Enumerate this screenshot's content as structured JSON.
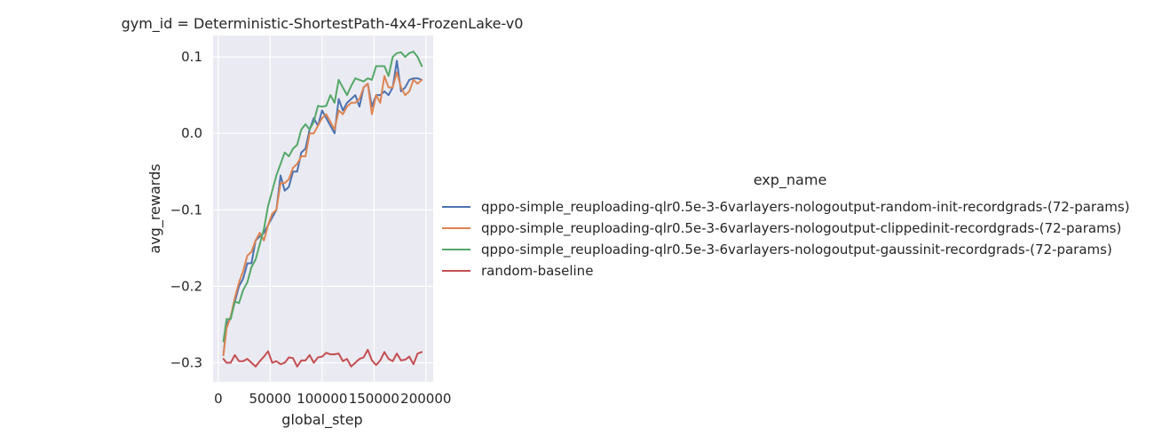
{
  "chart_data": {
    "type": "line",
    "title": "gym_id = Deterministic-ShortestPath-4x4-FrozenLake-v0",
    "xlabel": "global_step",
    "ylabel": "avg_rewards",
    "xlim": [
      -5000,
      207000
    ],
    "ylim": [
      -0.325,
      0.128
    ],
    "xticks": [
      0,
      50000,
      100000,
      150000,
      200000
    ],
    "xtick_labels": [
      "0",
      "50000",
      "100000",
      "150000",
      "200000"
    ],
    "yticks": [
      -0.3,
      -0.2,
      -0.1,
      0.0,
      0.1
    ],
    "ytick_labels": [
      "−0.3",
      "−0.2",
      "−0.1",
      "0.0",
      "0.1"
    ],
    "grid": true,
    "legend_title": "exp_name",
    "legend_position": "right",
    "x": [
      5000,
      8000,
      12000,
      16000,
      20000,
      24000,
      28000,
      32000,
      36000,
      40000,
      44000,
      48000,
      52000,
      56000,
      60000,
      64000,
      68000,
      72000,
      76000,
      80000,
      84000,
      88000,
      92000,
      96000,
      100000,
      104000,
      108000,
      112000,
      116000,
      120000,
      124000,
      128000,
      132000,
      136000,
      140000,
      144000,
      148000,
      152000,
      156000,
      160000,
      164000,
      168000,
      172000,
      176000,
      180000,
      184000,
      188000,
      192000,
      196000
    ],
    "series": [
      {
        "name": "qppo-simple_reuploading-qlr0.5e-3-6varlayers-nologoutput-random-init-recordgrads-(72-params)",
        "color": "#4c72b0",
        "values": [
          -0.29,
          -0.25,
          -0.24,
          -0.22,
          -0.2,
          -0.19,
          -0.17,
          -0.17,
          -0.14,
          -0.135,
          -0.13,
          -0.12,
          -0.11,
          -0.1,
          -0.055,
          -0.075,
          -0.07,
          -0.05,
          -0.05,
          -0.025,
          -0.02,
          0.005,
          0.02,
          0.01,
          0.03,
          0.02,
          0.01,
          0.0,
          0.045,
          0.03,
          0.04,
          0.045,
          0.05,
          0.035,
          0.06,
          0.065,
          0.035,
          0.05,
          0.05,
          0.055,
          0.05,
          0.06,
          0.095,
          0.055,
          0.06,
          0.07,
          0.072,
          0.072,
          0.07
        ]
      },
      {
        "name": "qppo-simple_reuploading-qlr0.5e-3-6varlayers-nologoutput-clippedinit-recordgrads-(72-params)",
        "color": "#dd8452",
        "values": [
          -0.29,
          -0.255,
          -0.24,
          -0.215,
          -0.195,
          -0.18,
          -0.16,
          -0.155,
          -0.14,
          -0.13,
          -0.14,
          -0.12,
          -0.105,
          -0.1,
          -0.065,
          -0.065,
          -0.06,
          -0.045,
          -0.04,
          -0.03,
          -0.03,
          0.0,
          0.0,
          0.01,
          0.02,
          0.025,
          0.015,
          0.005,
          0.03,
          0.025,
          0.035,
          0.04,
          0.04,
          0.045,
          0.06,
          0.065,
          0.025,
          0.05,
          0.04,
          0.075,
          0.06,
          0.06,
          0.08,
          0.06,
          0.05,
          0.055,
          0.07,
          0.065,
          0.07
        ]
      },
      {
        "name": "qppo-simple_reuploading-qlr0.5e-3-6varlayers-nologoutput-gaussinit-recordgrads-(72-params)",
        "color": "#55a868",
        "values": [
          -0.272,
          -0.243,
          -0.243,
          -0.22,
          -0.222,
          -0.205,
          -0.195,
          -0.175,
          -0.165,
          -0.145,
          -0.125,
          -0.095,
          -0.075,
          -0.055,
          -0.04,
          -0.025,
          -0.03,
          -0.02,
          -0.015,
          0.005,
          0.012,
          0.005,
          0.015,
          0.036,
          0.035,
          0.036,
          0.05,
          0.04,
          0.07,
          0.06,
          0.05,
          0.062,
          0.072,
          0.07,
          0.068,
          0.072,
          0.07,
          0.088,
          0.088,
          0.088,
          0.075,
          0.1,
          0.105,
          0.106,
          0.1,
          0.105,
          0.107,
          0.1,
          0.088
        ]
      },
      {
        "name": "random-baseline",
        "color": "#c44e52",
        "values": [
          -0.295,
          -0.3,
          -0.3,
          -0.29,
          -0.298,
          -0.298,
          -0.295,
          -0.3,
          -0.305,
          -0.298,
          -0.292,
          -0.285,
          -0.3,
          -0.298,
          -0.302,
          -0.3,
          -0.293,
          -0.294,
          -0.305,
          -0.297,
          -0.297,
          -0.29,
          -0.3,
          -0.293,
          -0.292,
          -0.287,
          -0.289,
          -0.289,
          -0.288,
          -0.298,
          -0.295,
          -0.305,
          -0.3,
          -0.295,
          -0.293,
          -0.283,
          -0.297,
          -0.303,
          -0.297,
          -0.286,
          -0.295,
          -0.298,
          -0.288,
          -0.297,
          -0.296,
          -0.292,
          -0.302,
          -0.288,
          -0.286
        ]
      }
    ]
  }
}
